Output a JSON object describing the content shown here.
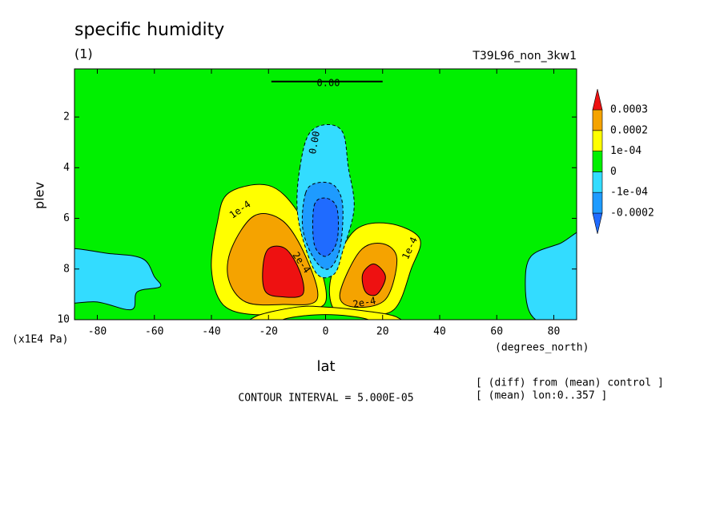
{
  "chart_data": {
    "type": "contour",
    "title": "specific humidity",
    "subtitle": "(1)",
    "run_label": "T39L96_non_3kw1",
    "x_label": "lat",
    "x_units": "(degrees_north)",
    "y_label": "plev",
    "y_units": "(x1E4 Pa)",
    "footer": "CONTOUR INTERVAL = 5.000E-05",
    "notes": [
      "[ (diff) from (mean) control ]",
      "[ (mean) lon:0..357 ]"
    ],
    "xlim": [
      -88,
      88
    ],
    "ylim": [
      10,
      0.1
    ],
    "xticks": [
      -80,
      -60,
      -40,
      -20,
      0,
      20,
      40,
      60,
      80
    ],
    "yticks": [
      2,
      4,
      6,
      8,
      10
    ],
    "levels": [
      {
        "value": -0.0002,
        "label": "-0.0002"
      },
      {
        "value": -0.0001,
        "label": "-1e-04"
      },
      0,
      {
        "value": 0.0001,
        "label": "1e-04"
      },
      0.0002,
      0.0003
    ],
    "colors": [
      "#1f6bff",
      "#1e9bff",
      "#33dcff",
      "#00f000",
      "#ffff00",
      "#f5a300",
      "#ee1111"
    ],
    "contour_labels": [
      {
        "value": 0,
        "label": "0.00"
      },
      {
        "value": 0,
        "label": "0.00"
      },
      {
        "value": 0.0001,
        "label": "1e-4"
      },
      {
        "value": 0.0002,
        "label": "2e-4"
      },
      {
        "value": 0.0001,
        "label": "1e-4"
      },
      {
        "value": 0.0002,
        "label": "2e-4"
      }
    ]
  }
}
